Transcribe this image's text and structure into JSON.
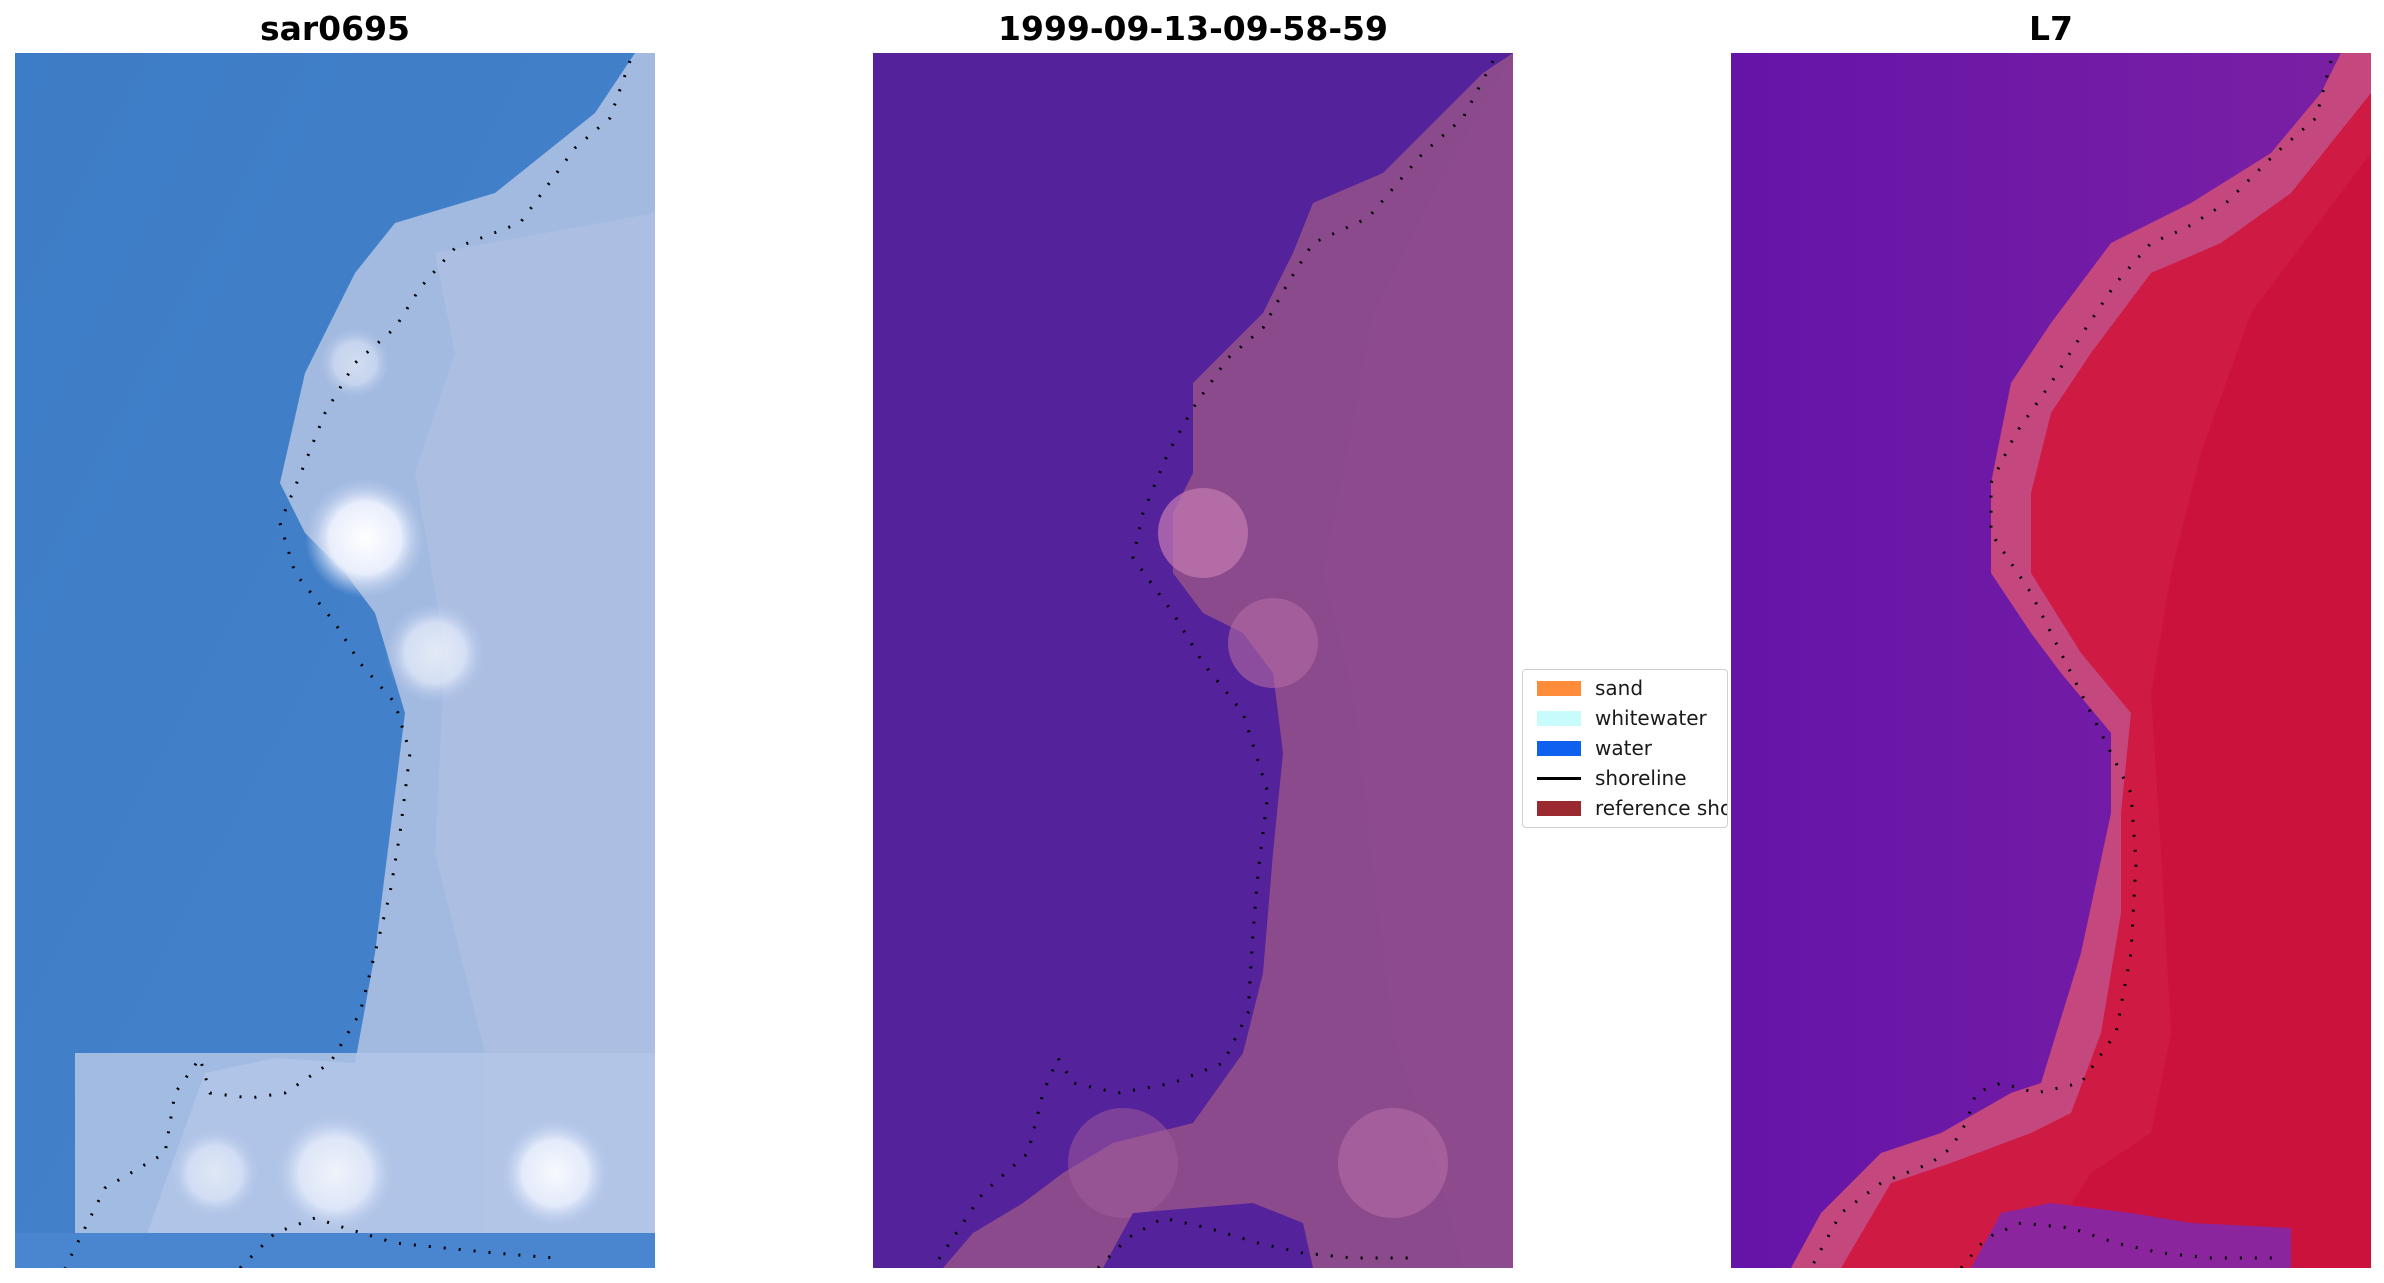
{
  "figure": {
    "panels": [
      {
        "title": "sar0695",
        "kind": "rgb"
      },
      {
        "title": "1999-09-13-09-58-59",
        "kind": "classified"
      },
      {
        "title": "L7",
        "kind": "index"
      }
    ],
    "legend": {
      "items": [
        {
          "label": "sand",
          "color": "#ff8c3a",
          "type": "patch"
        },
        {
          "label": "whitewater",
          "color": "#c8fcfc",
          "type": "patch"
        },
        {
          "label": "water",
          "color": "#1060f0",
          "type": "patch"
        },
        {
          "label": "shoreline",
          "color": "#000000",
          "type": "line"
        },
        {
          "label": "reference shoreline",
          "color": "#9b2a30",
          "type": "patch"
        }
      ]
    },
    "colors": {
      "water_rgb": "#3f7fc7",
      "land_rgb": "#a7bde2",
      "water_class": "#54229a",
      "land_class": "#8b4a8c",
      "water_index": "#6a12aa",
      "land_index": "#d0183e"
    }
  }
}
